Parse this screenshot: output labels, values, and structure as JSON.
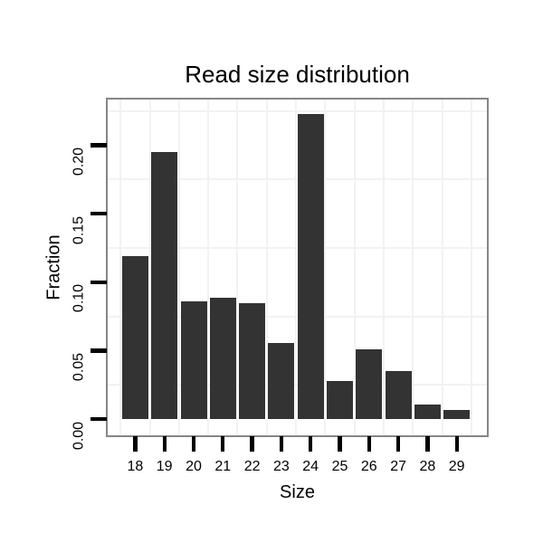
{
  "chart_data": {
    "type": "bar",
    "title": "Read size distribution",
    "xlabel": "Size",
    "ylabel": "Fraction",
    "categories": [
      "18",
      "19",
      "20",
      "21",
      "22",
      "23",
      "24",
      "25",
      "26",
      "27",
      "28",
      "29"
    ],
    "values": [
      0.119,
      0.195,
      0.086,
      0.089,
      0.085,
      0.056,
      0.223,
      0.028,
      0.051,
      0.035,
      0.011,
      0.007
    ],
    "y_tick_labels": [
      "0.00",
      "0.05",
      "0.10",
      "0.15",
      "0.20"
    ],
    "y_tick_values": [
      0.0,
      0.05,
      0.1,
      0.15,
      0.2
    ],
    "minor_gridline_values": [
      0.025,
      0.075,
      0.125,
      0.175,
      0.225
    ],
    "ylim": [
      0,
      0.2335
    ],
    "grid": "minor",
    "legend": "none",
    "bar_color": "#333333",
    "panel_border_color": "#868686",
    "gridline_color": "#f2f2f2",
    "tick_color": "#000000",
    "text_color": "#000000"
  }
}
